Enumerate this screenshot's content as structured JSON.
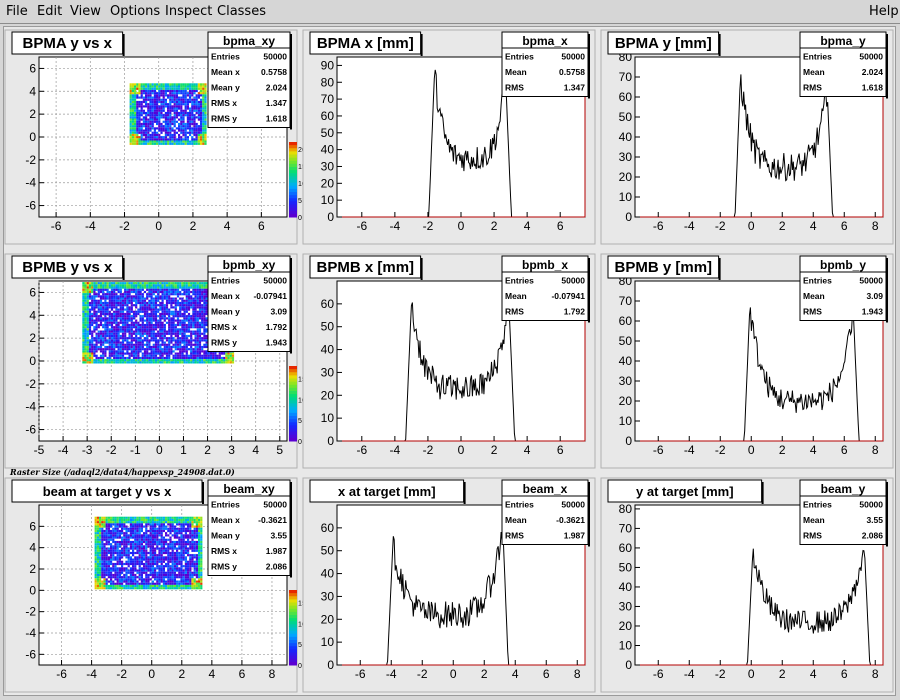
{
  "menubar": {
    "items": [
      "File",
      "Edit",
      "View",
      "Options",
      "Inspect",
      "Classes"
    ],
    "help": "Help"
  },
  "caption": "Raster Size (/adaql2/data4/happexsp_24908.dat.0)",
  "colors": {
    "pad_bg": "#e8e8e8",
    "frame_bg": "#ffffff",
    "hist_line": "#000000",
    "axis_red": "#b30000"
  },
  "chart_data": [
    {
      "type": "heatmap",
      "row": 0,
      "col": 0,
      "title": "BPMA y vs x",
      "stats_name": "bpma_xy",
      "stats": [
        [
          "Entries",
          "50000"
        ],
        [
          "Mean x",
          "0.5758"
        ],
        [
          "Mean y",
          "2.024"
        ],
        [
          "RMS x",
          "1.347"
        ],
        [
          "RMS y",
          "1.618"
        ]
      ],
      "xlim": [
        -7,
        7.5
      ],
      "ylim": [
        -7,
        7
      ],
      "xticks": [
        "-6",
        "-4",
        "-2",
        "0",
        "2",
        "4",
        "6"
      ],
      "yticks": [
        "6",
        "4",
        "2",
        "0",
        "-2",
        "-4",
        "-6"
      ],
      "colorbar": {
        "ticks": [
          "20",
          "15",
          "10",
          "5",
          "0"
        ],
        "max": 22
      },
      "region": {
        "x": [
          -1.7,
          2.8
        ],
        "y": [
          -0.6,
          4.7
        ]
      },
      "grid": true
    },
    {
      "type": "bar",
      "row": 0,
      "col": 1,
      "title": "BPMA x [mm]",
      "stats_name": "bpma_x",
      "stats": [
        [
          "Entries",
          "50000"
        ],
        [
          "Mean",
          "0.5758"
        ],
        [
          "RMS",
          "1.347"
        ]
      ],
      "xlim": [
        -7.5,
        7.5
      ],
      "ylim": [
        0,
        95
      ],
      "xticks": [
        "-6",
        "-4",
        "-2",
        "0",
        "2",
        "4",
        "6"
      ],
      "yticks": [
        "90",
        "80",
        "70",
        "60",
        "50",
        "40",
        "30",
        "20",
        "10",
        "0"
      ],
      "profile": {
        "lo": -1.6,
        "hi": 2.7,
        "edge_lo": 86,
        "edge_hi": 82,
        "center": 35,
        "noise": 8
      }
    },
    {
      "type": "bar",
      "row": 0,
      "col": 2,
      "title": "BPMA y [mm]",
      "stats_name": "bpma_y",
      "stats": [
        [
          "Entries",
          "50000"
        ],
        [
          "Mean",
          "2.024"
        ],
        [
          "RMS",
          "1.618"
        ]
      ],
      "xlim": [
        -7.5,
        8.5
      ],
      "ylim": [
        0,
        80
      ],
      "xticks": [
        "-6",
        "-4",
        "-2",
        "0",
        "2",
        "4",
        "6",
        "8"
      ],
      "yticks": [
        "80",
        "70",
        "60",
        "50",
        "40",
        "30",
        "20",
        "10",
        "0"
      ],
      "profile": {
        "lo": -0.7,
        "hi": 4.9,
        "edge_lo": 70,
        "edge_hi": 63,
        "center": 25,
        "noise": 7
      }
    },
    {
      "type": "heatmap",
      "row": 1,
      "col": 0,
      "title": "BPMB y vs x",
      "stats_name": "bpmb_xy",
      "stats": [
        [
          "Entries",
          "50000"
        ],
        [
          "Mean x",
          "-0.07941"
        ],
        [
          "Mean y",
          "3.09"
        ],
        [
          "RMS x",
          "1.792"
        ],
        [
          "RMS y",
          "1.943"
        ]
      ],
      "xlim": [
        -5,
        5.3
      ],
      "ylim": [
        -7,
        7
      ],
      "xticks": [
        "-5",
        "-4",
        "-3",
        "-2",
        "-1",
        "0",
        "1",
        "2",
        "3",
        "4",
        "5"
      ],
      "yticks": [
        "6",
        "4",
        "2",
        "0",
        "-2",
        "-4",
        "-6"
      ],
      "colorbar": {
        "ticks": [
          "15",
          "10",
          "5",
          "0"
        ],
        "max": 18
      },
      "region": {
        "x": [
          -3.2,
          3.1
        ],
        "y": [
          -0.1,
          6.9
        ]
      },
      "grid": true
    },
    {
      "type": "bar",
      "row": 1,
      "col": 1,
      "title": "BPMB x [mm]",
      "stats_name": "bpmb_x",
      "stats": [
        [
          "Entries",
          "50000"
        ],
        [
          "Mean",
          "-0.07941"
        ],
        [
          "RMS",
          "1.792"
        ]
      ],
      "xlim": [
        -7.5,
        7.5
      ],
      "ylim": [
        0,
        70
      ],
      "xticks": [
        "-6",
        "-4",
        "-2",
        "0",
        "2",
        "4",
        "6"
      ],
      "yticks": [
        "60",
        "50",
        "40",
        "30",
        "20",
        "10",
        "0"
      ],
      "profile": {
        "lo": -3.0,
        "hi": 2.9,
        "edge_lo": 60,
        "edge_hi": 60,
        "center": 23,
        "noise": 6
      }
    },
    {
      "type": "bar",
      "row": 1,
      "col": 2,
      "title": "BPMB y [mm]",
      "stats_name": "bpmb_y",
      "stats": [
        [
          "Entries",
          "50000"
        ],
        [
          "Mean",
          "3.09"
        ],
        [
          "RMS",
          "1.943"
        ]
      ],
      "xlim": [
        -7.5,
        8.5
      ],
      "ylim": [
        0,
        80
      ],
      "xticks": [
        "-6",
        "-4",
        "-2",
        "0",
        "2",
        "4",
        "6",
        "8"
      ],
      "yticks": [
        "80",
        "70",
        "60",
        "50",
        "40",
        "30",
        "20",
        "10",
        "0"
      ],
      "profile": {
        "lo": -0.1,
        "hi": 6.6,
        "edge_lo": 66,
        "edge_hi": 62,
        "center": 20,
        "noise": 6
      }
    },
    {
      "type": "heatmap",
      "row": 2,
      "col": 0,
      "title": "beam at target y vs x",
      "stats_name": "beam_xy",
      "stats": [
        [
          "Entries",
          "50000"
        ],
        [
          "Mean x",
          "-0.3621"
        ],
        [
          "Mean y",
          "3.55"
        ],
        [
          "RMS x",
          "1.987"
        ],
        [
          "RMS y",
          "2.086"
        ]
      ],
      "xlim": [
        -7.5,
        9
      ],
      "ylim": [
        -7,
        8
      ],
      "xticks": [
        "-6",
        "-4",
        "-2",
        "0",
        "2",
        "4",
        "6",
        "8"
      ],
      "yticks": [
        "6",
        "4",
        "2",
        "0",
        "-2",
        "-4",
        "-6"
      ],
      "colorbar": {
        "ticks": [
          "15",
          "10",
          "5",
          "0"
        ],
        "max": 18
      },
      "region": {
        "x": [
          -3.8,
          3.3
        ],
        "y": [
          0.2,
          6.9
        ]
      },
      "grid": true
    },
    {
      "type": "bar",
      "row": 2,
      "col": 1,
      "title": "x at target [mm]",
      "stats_name": "beam_x",
      "stats": [
        [
          "Entries",
          "50000"
        ],
        [
          "Mean",
          "-0.3621"
        ],
        [
          "RMS",
          "1.987"
        ]
      ],
      "xlim": [
        -7.5,
        8.5
      ],
      "ylim": [
        0,
        70
      ],
      "xticks": [
        "-6",
        "-4",
        "-2",
        "0",
        "2",
        "4",
        "6",
        "8"
      ],
      "yticks": [
        "60",
        "50",
        "40",
        "30",
        "20",
        "10",
        "0"
      ],
      "profile": {
        "lo": -3.9,
        "hi": 3.2,
        "edge_lo": 52,
        "edge_hi": 60,
        "center": 22,
        "noise": 6
      }
    },
    {
      "type": "bar",
      "row": 2,
      "col": 2,
      "title": "y at target [mm]",
      "stats_name": "beam_y",
      "stats": [
        [
          "Entries",
          "50000"
        ],
        [
          "Mean",
          "3.55"
        ],
        [
          "RMS",
          "2.086"
        ]
      ],
      "xlim": [
        -7.5,
        8.5
      ],
      "ylim": [
        0,
        82
      ],
      "xticks": [
        "-6",
        "-4",
        "-2",
        "0",
        "2",
        "4",
        "6",
        "8"
      ],
      "yticks": [
        "80",
        "70",
        "60",
        "50",
        "40",
        "30",
        "20",
        "10",
        "0"
      ],
      "profile": {
        "lo": 0.1,
        "hi": 7.3,
        "edge_lo": 58,
        "edge_hi": 60,
        "center": 22,
        "noise": 6
      }
    }
  ]
}
